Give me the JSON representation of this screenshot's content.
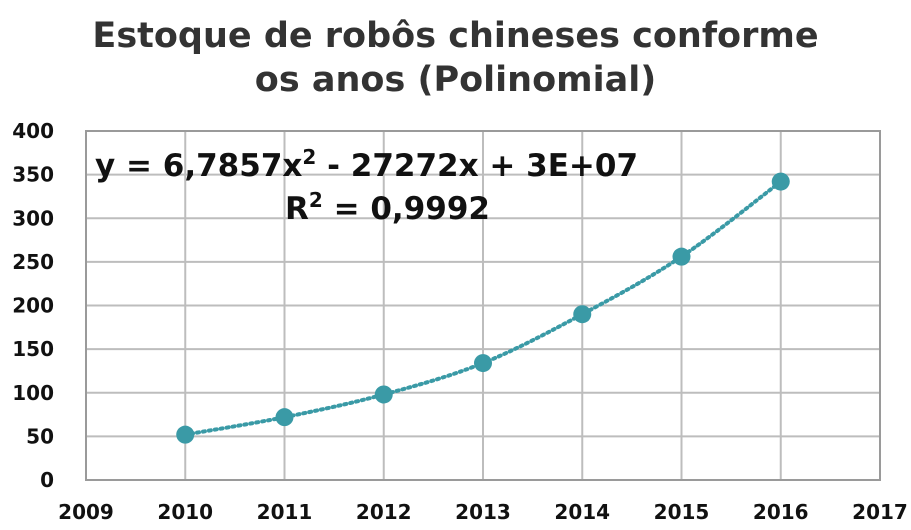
{
  "chart_data": {
    "type": "scatter",
    "title_lines": [
      "Estoque de robôs chineses conforme",
      "os anos (Polinomial)"
    ],
    "x": [
      2010,
      2011,
      2012,
      2013,
      2014,
      2015,
      2016
    ],
    "y": [
      52,
      72,
      98,
      134,
      190,
      256,
      342
    ],
    "xlim": [
      2009,
      2017
    ],
    "ylim": [
      0,
      400
    ],
    "x_ticks": [
      "2009",
      "2010",
      "2011",
      "2012",
      "2013",
      "2014",
      "2015",
      "2016",
      "2017"
    ],
    "y_ticks": [
      "0",
      "50",
      "100",
      "150",
      "200",
      "250",
      "300",
      "350",
      "400"
    ],
    "trendline": {
      "type": "polynomial",
      "equation_prefix": "y = 6,7857x",
      "equation_exp": "2",
      "equation_suffix": " - 27272x + 3E+07",
      "r2_prefix": "R",
      "r2_exp": "2",
      "r2_suffix": " = 0,9992"
    },
    "grid": true,
    "legend": "none",
    "marker_color": "#3A9AA6",
    "trend_color": "#3A9AA6"
  }
}
